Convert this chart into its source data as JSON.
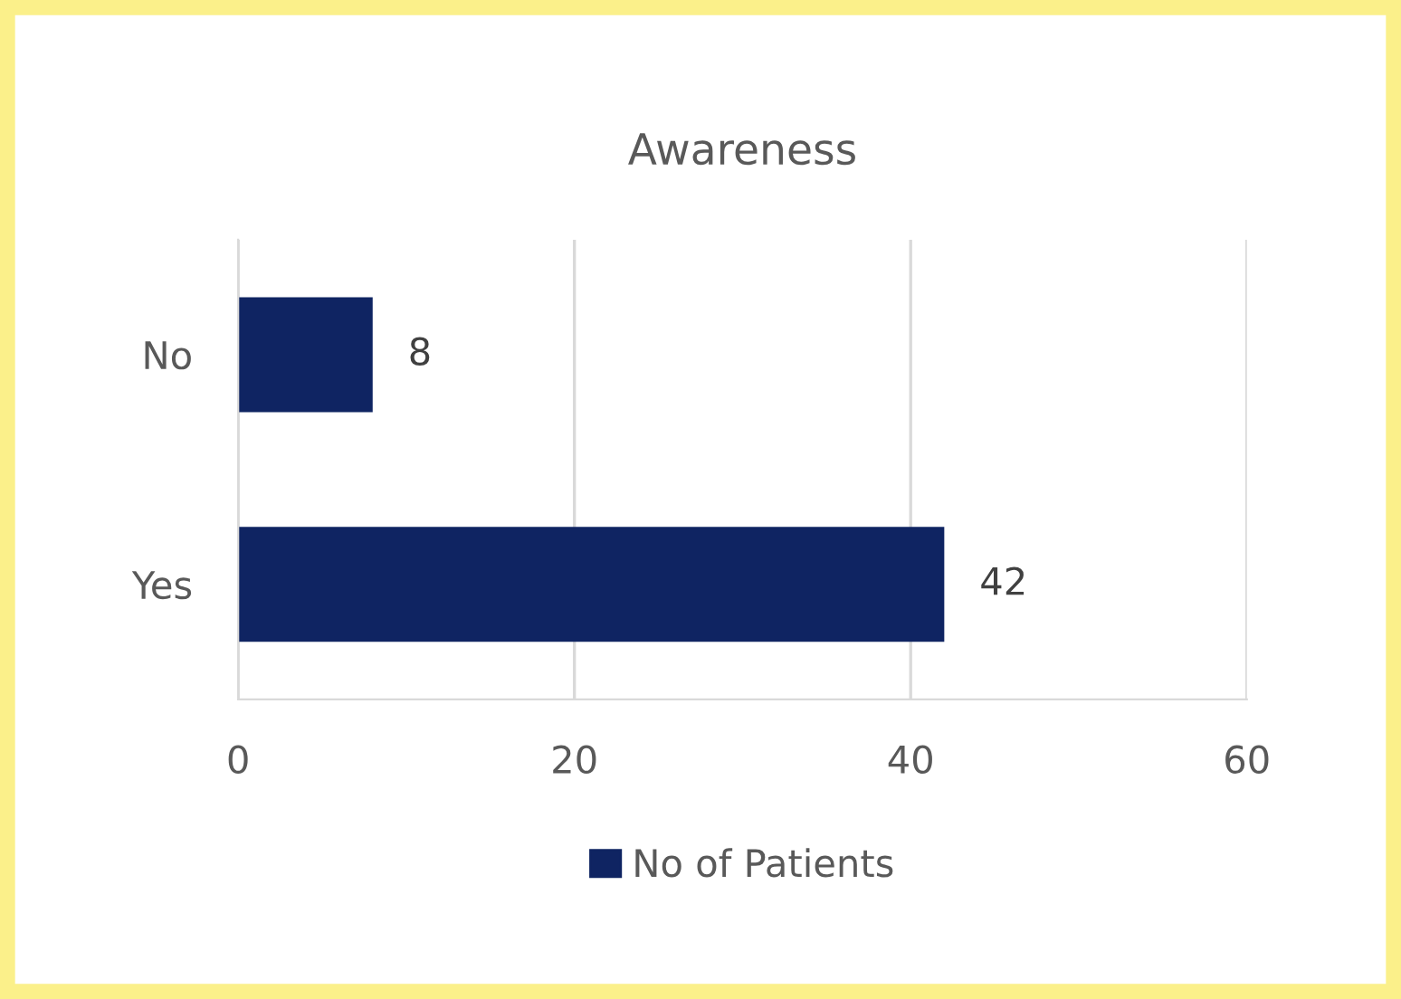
{
  "chart_data": {
    "type": "bar",
    "orientation": "horizontal",
    "title": "Awareness",
    "categories": [
      "No",
      "Yes"
    ],
    "series": [
      {
        "name": "No of Patients",
        "color": "#0f2462",
        "values": [
          8,
          42
        ]
      }
    ],
    "xlim": [
      0,
      60
    ],
    "xticks": [
      0,
      20,
      40,
      60
    ],
    "grid": "x",
    "legend": "bottom",
    "data_labels": true
  }
}
